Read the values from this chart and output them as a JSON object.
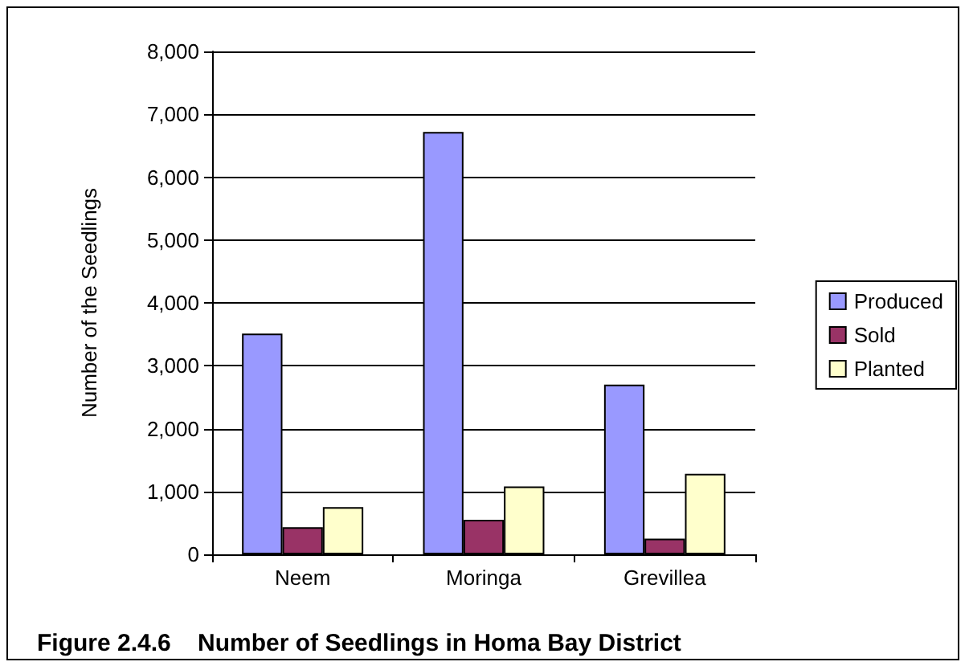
{
  "chart_data": {
    "type": "bar",
    "title": "Figure 2.4.6    Number of Seedlings in Homa Bay District",
    "ylabel": "Number of the Seedlings",
    "categories": [
      "Neem",
      "Moringa",
      "Grevillea"
    ],
    "series": [
      {
        "name": "Produced",
        "color": "#9999ff",
        "values": [
          3510,
          6720,
          2700
        ]
      },
      {
        "name": "Sold",
        "color": "#993366",
        "values": [
          430,
          550,
          250
        ]
      },
      {
        "name": "Planted",
        "color": "#ffffcc",
        "values": [
          750,
          1080,
          1280
        ]
      }
    ],
    "ylim": [
      0,
      8000
    ],
    "yticks": [
      0,
      {
        "value": 1000,
        "label": "1,000"
      },
      {
        "value": 2000,
        "label": "2,000"
      },
      {
        "value": 3000,
        "label": "3,000"
      },
      {
        "value": 4000,
        "label": "4,000"
      },
      {
        "value": 5000,
        "label": "5,000"
      },
      {
        "value": 6000,
        "label": "6,000"
      },
      {
        "value": 7000,
        "label": "7,000"
      },
      {
        "value": 8000,
        "label": "8,000"
      }
    ],
    "grid": "y",
    "legend": "right"
  }
}
